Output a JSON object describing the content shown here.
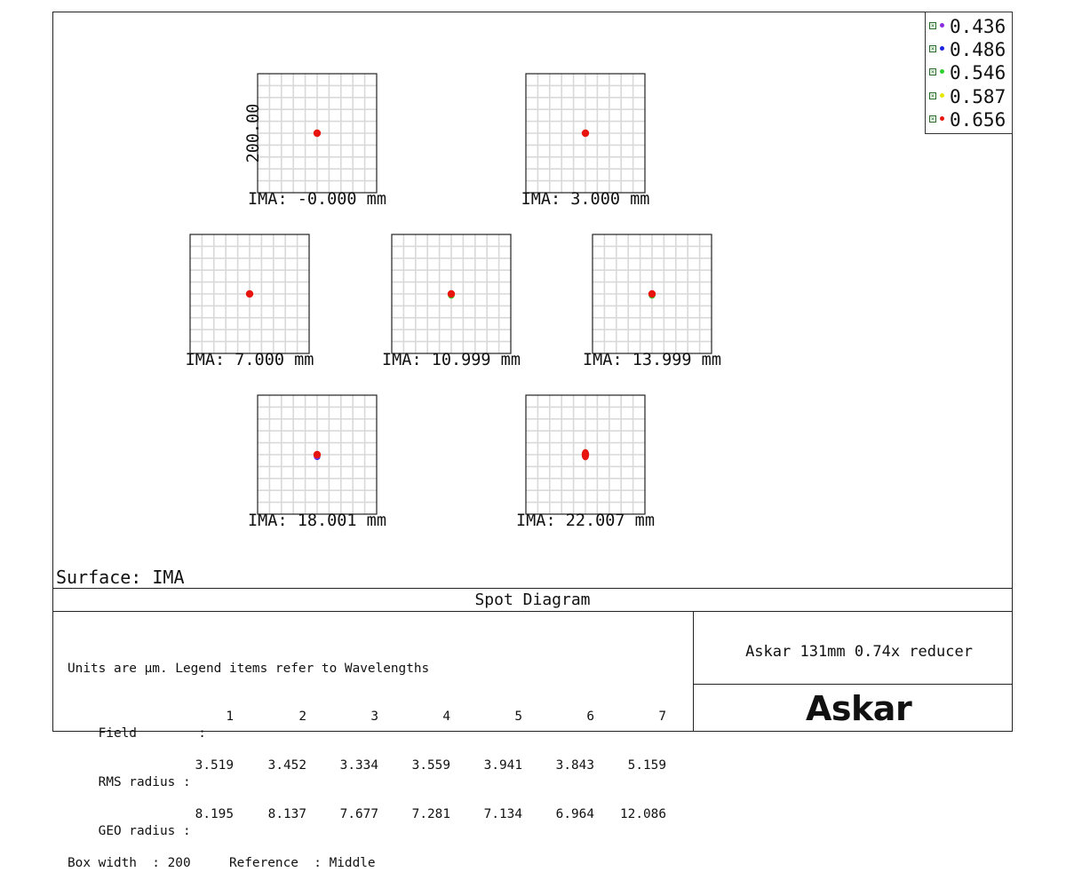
{
  "chart_data": {
    "type": "scatter",
    "title": "Spot Diagram",
    "surface_label": "Surface: IMA",
    "scale_label": "200.00",
    "legend": [
      {
        "label": "0.436",
        "color": "#8a2be2"
      },
      {
        "label": "0.486",
        "color": "#1a22e0"
      },
      {
        "label": "0.546",
        "color": "#2fd12f"
      },
      {
        "label": "0.587",
        "color": "#e6e600"
      },
      {
        "label": "0.656",
        "color": "#e8150f"
      }
    ],
    "plots": [
      {
        "label": "IMA: -0.000 mm",
        "spot_rms_um": 3.519
      },
      {
        "label": "IMA: 3.000 mm",
        "spot_rms_um": 3.452
      },
      {
        "label": "IMA: 7.000 mm",
        "spot_rms_um": 3.334
      },
      {
        "label": "IMA: 10.999 mm",
        "spot_rms_um": 3.559
      },
      {
        "label": "IMA: 13.999 mm",
        "spot_rms_um": 3.941
      },
      {
        "label": "IMA: 18.001 mm",
        "spot_rms_um": 3.843
      },
      {
        "label": "IMA: 22.007 mm",
        "spot_rms_um": 5.159
      }
    ],
    "box_width_um": 200,
    "grid": true
  },
  "info": {
    "line1": "Units are µm. Legend items refer to Wavelengths",
    "field_label": "Field        :",
    "fields": [
      "1",
      "2",
      "3",
      "4",
      "5",
      "6",
      "7"
    ],
    "rms_label": "RMS radius :",
    "rms": [
      "3.519",
      "3.452",
      "3.334",
      "3.559",
      "3.941",
      "3.843",
      "5.159"
    ],
    "geo_label": "GEO radius :",
    "geo": [
      "8.195",
      "8.137",
      "7.677",
      "7.281",
      "7.134",
      "6.964",
      "12.086"
    ],
    "footer": "Box width  : 200     Reference  : Middle"
  },
  "product": "Askar 131mm 0.74x reducer",
  "logo": "Askar"
}
